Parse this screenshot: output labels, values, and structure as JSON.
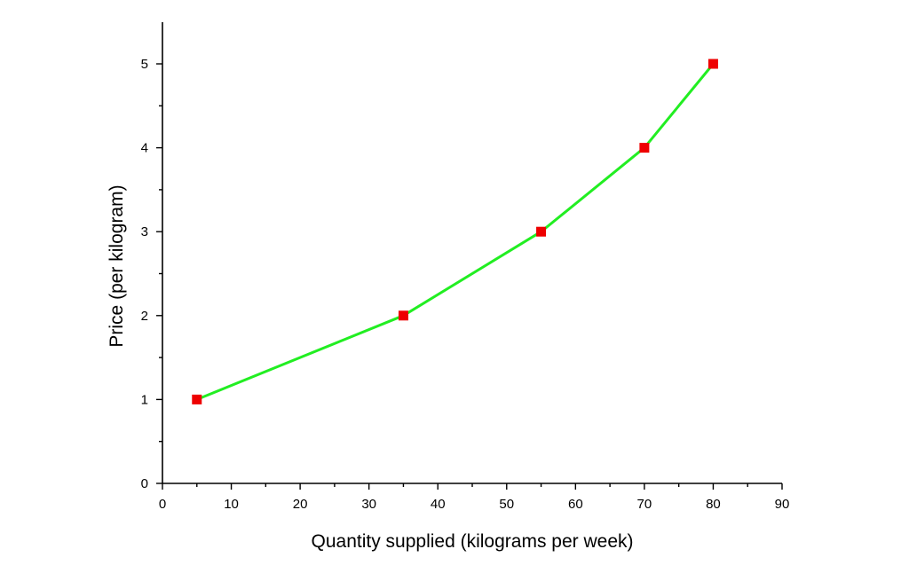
{
  "chart_data": {
    "type": "line",
    "title": "",
    "xlabel": "Quantity supplied (kilograms per week)",
    "ylabel": "Price (per kilogram)",
    "xlim": [
      0,
      90
    ],
    "ylim": [
      0,
      5.5
    ],
    "x_ticks": [
      0,
      10,
      20,
      30,
      40,
      50,
      60,
      70,
      80,
      90
    ],
    "y_ticks": [
      0,
      1,
      2,
      3,
      4,
      5
    ],
    "grid": false,
    "legend": "none",
    "series": [
      {
        "x": [
          5,
          35,
          55,
          70,
          80
        ],
        "y": [
          1,
          2,
          3,
          4,
          5
        ],
        "line_color": "#22ee22",
        "marker_color": "#ee0000",
        "marker": "square"
      }
    ]
  }
}
